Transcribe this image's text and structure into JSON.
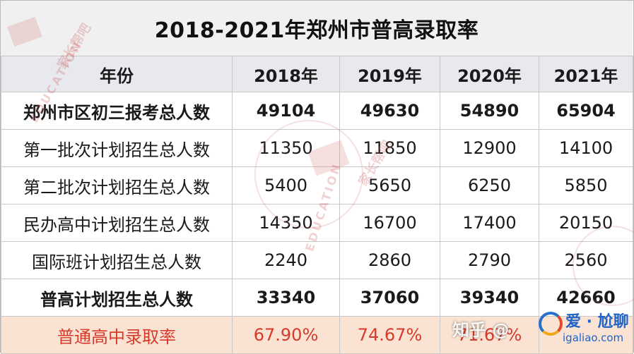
{
  "title": "2018-2021年郑州市普高录取率",
  "header": [
    "年份",
    "2018年",
    "2019年",
    "2020年",
    "2021年"
  ],
  "rows": [
    {
      "label": "郑州市区初三报考总人数",
      "values": [
        "49104",
        "49630",
        "54890",
        "65904"
      ]
    },
    {
      "label": "第一批次计划招生总人数",
      "values": [
        "11350",
        "11850",
        "12900",
        "14100"
      ]
    },
    {
      "label": "第二批次计划招生总人数",
      "values": [
        "5400",
        "5650",
        "6250",
        "5850"
      ]
    },
    {
      "label": "民办高中计划招生总人数",
      "values": [
        "14350",
        "16700",
        "17400",
        "20150"
      ]
    },
    {
      "label": "国际班计划招生总人数",
      "values": [
        "2240",
        "2860",
        "2790",
        "2560"
      ]
    },
    {
      "label": "普高计划招生总人数",
      "values": [
        "33340",
        "37060",
        "39340",
        "42660"
      ]
    },
    {
      "label": "普通高中录取率",
      "values": [
        "67.90%",
        "74.67%",
        "71.67%",
        ""
      ]
    }
  ],
  "watermarks": {
    "brand_cn": "家长帮吧",
    "brand_en": "EDUCATION",
    "zhihu": "知乎 @",
    "site_cn": "爱 · 尬聊",
    "site_domain": "igaliao.com"
  },
  "colors": {
    "rate_text": "#d63a2a",
    "rate_bg": "#fbe3d3",
    "header_bg": "#e7e9ee",
    "title_bg": "#f0f0f0"
  }
}
